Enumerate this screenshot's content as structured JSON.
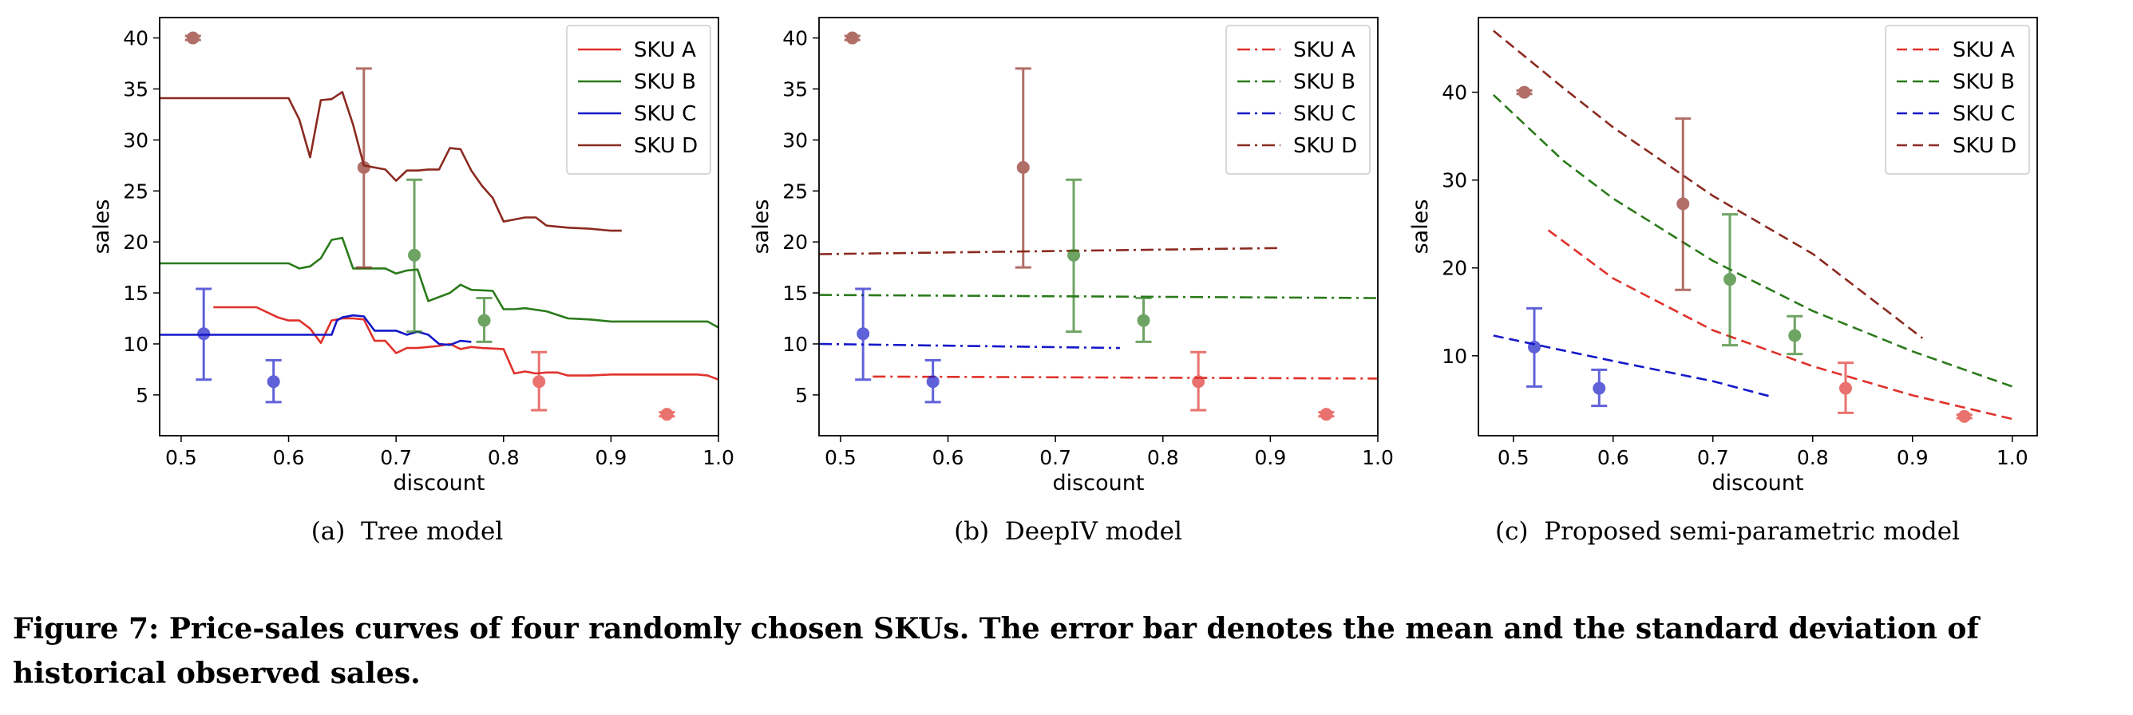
{
  "figure_caption": "Figure 7: Price-sales curves of four randomly chosen SKUs. The error bar denotes the mean and the standard deviation of historical observed sales.",
  "colors": {
    "SKU A": "#e0312b",
    "SKU B": "#2a7a1a",
    "SKU C": "#1518c8",
    "SKU D": "#8b2a20"
  },
  "chart_data": [
    {
      "type": "line",
      "subcaption": "(a)  Tree model",
      "xlabel": "discount",
      "ylabel": "sales",
      "xlim": [
        0.48,
        1.0
      ],
      "ylim": [
        1,
        42
      ],
      "xticks": [
        "0.5",
        "0.6",
        "0.7",
        "0.8",
        "0.9",
        "1.0"
      ],
      "yticks": [
        "5",
        "10",
        "15",
        "20",
        "25",
        "30",
        "35",
        "40"
      ],
      "line_style": "solid",
      "legend_position": "top-right",
      "series": [
        {
          "name": "SKU A",
          "points": [
            [
              0.53,
              13.6
            ],
            [
              0.57,
              13.6
            ],
            [
              0.59,
              12.6
            ],
            [
              0.6,
              12.3
            ],
            [
              0.61,
              12.3
            ],
            [
              0.62,
              11.5
            ],
            [
              0.63,
              10.1
            ],
            [
              0.64,
              12.3
            ],
            [
              0.65,
              12.5
            ],
            [
              0.66,
              12.5
            ],
            [
              0.67,
              12.4
            ],
            [
              0.68,
              10.3
            ],
            [
              0.69,
              10.3
            ],
            [
              0.7,
              9.1
            ],
            [
              0.71,
              9.6
            ],
            [
              0.72,
              9.6
            ],
            [
              0.74,
              9.8
            ],
            [
              0.75,
              10.0
            ],
            [
              0.76,
              9.5
            ],
            [
              0.77,
              9.7
            ],
            [
              0.78,
              9.6
            ],
            [
              0.8,
              9.5
            ],
            [
              0.81,
              7.1
            ],
            [
              0.82,
              7.3
            ],
            [
              0.83,
              7.1
            ],
            [
              0.84,
              7.2
            ],
            [
              0.85,
              7.2
            ],
            [
              0.86,
              6.9
            ],
            [
              0.88,
              6.9
            ],
            [
              0.9,
              7.0
            ],
            [
              0.98,
              7.0
            ],
            [
              0.99,
              6.9
            ],
            [
              1.0,
              6.5
            ]
          ]
        },
        {
          "name": "SKU B",
          "points": [
            [
              0.48,
              17.9
            ],
            [
              0.6,
              17.9
            ],
            [
              0.61,
              17.4
            ],
            [
              0.62,
              17.6
            ],
            [
              0.63,
              18.4
            ],
            [
              0.64,
              20.2
            ],
            [
              0.65,
              20.4
            ],
            [
              0.66,
              17.4
            ],
            [
              0.69,
              17.4
            ],
            [
              0.7,
              16.9
            ],
            [
              0.71,
              17.2
            ],
            [
              0.72,
              17.3
            ],
            [
              0.73,
              14.2
            ],
            [
              0.75,
              15.0
            ],
            [
              0.76,
              15.8
            ],
            [
              0.77,
              15.3
            ],
            [
              0.79,
              15.2
            ],
            [
              0.8,
              13.4
            ],
            [
              0.81,
              13.4
            ],
            [
              0.82,
              13.5
            ],
            [
              0.84,
              13.2
            ],
            [
              0.86,
              12.5
            ],
            [
              0.88,
              12.4
            ],
            [
              0.9,
              12.2
            ],
            [
              0.99,
              12.2
            ],
            [
              1.0,
              11.6
            ]
          ]
        },
        {
          "name": "SKU C",
          "points": [
            [
              0.48,
              10.9
            ],
            [
              0.64,
              10.9
            ],
            [
              0.645,
              12.3
            ],
            [
              0.65,
              12.6
            ],
            [
              0.66,
              12.8
            ],
            [
              0.67,
              12.7
            ],
            [
              0.68,
              11.3
            ],
            [
              0.7,
              11.3
            ],
            [
              0.71,
              10.9
            ],
            [
              0.72,
              11.2
            ],
            [
              0.73,
              10.9
            ],
            [
              0.74,
              10.0
            ],
            [
              0.75,
              9.9
            ],
            [
              0.76,
              10.3
            ],
            [
              0.77,
              10.2
            ]
          ]
        },
        {
          "name": "SKU D",
          "points": [
            [
              0.48,
              34.1
            ],
            [
              0.6,
              34.1
            ],
            [
              0.61,
              32.0
            ],
            [
              0.62,
              28.3
            ],
            [
              0.63,
              33.9
            ],
            [
              0.64,
              34.0
            ],
            [
              0.65,
              34.7
            ],
            [
              0.66,
              31.5
            ],
            [
              0.67,
              27.5
            ],
            [
              0.68,
              27.3
            ],
            [
              0.69,
              27.1
            ],
            [
              0.7,
              26.0
            ],
            [
              0.71,
              27.0
            ],
            [
              0.72,
              27.0
            ],
            [
              0.73,
              27.1
            ],
            [
              0.74,
              27.1
            ],
            [
              0.75,
              29.2
            ],
            [
              0.76,
              29.1
            ],
            [
              0.77,
              27.0
            ],
            [
              0.78,
              25.5
            ],
            [
              0.79,
              24.3
            ],
            [
              0.8,
              22.0
            ],
            [
              0.81,
              22.2
            ],
            [
              0.82,
              22.4
            ],
            [
              0.83,
              22.4
            ],
            [
              0.84,
              21.6
            ],
            [
              0.86,
              21.4
            ],
            [
              0.88,
              21.3
            ],
            [
              0.9,
              21.1
            ],
            [
              0.91,
              21.1
            ]
          ]
        }
      ],
      "errorbars": [
        {
          "sku": "SKU D",
          "x": 0.511,
          "mean": 40.0,
          "low": 39.8,
          "high": 40.2
        },
        {
          "sku": "SKU C",
          "x": 0.521,
          "mean": 11.0,
          "low": 6.5,
          "high": 15.4
        },
        {
          "sku": "SKU C",
          "x": 0.586,
          "mean": 6.3,
          "low": 4.3,
          "high": 8.4
        },
        {
          "sku": "SKU D",
          "x": 0.67,
          "mean": 27.3,
          "low": 17.5,
          "high": 37.0
        },
        {
          "sku": "SKU B",
          "x": 0.717,
          "mean": 18.7,
          "low": 11.2,
          "high": 26.1
        },
        {
          "sku": "SKU B",
          "x": 0.782,
          "mean": 12.3,
          "low": 10.2,
          "high": 14.5
        },
        {
          "sku": "SKU A",
          "x": 0.833,
          "mean": 6.3,
          "low": 3.5,
          "high": 9.2
        },
        {
          "sku": "SKU A",
          "x": 0.952,
          "mean": 3.1,
          "low": 2.9,
          "high": 3.3
        }
      ]
    },
    {
      "type": "line",
      "subcaption": "(b)  DeepIV model",
      "xlabel": "discount",
      "ylabel": "sales",
      "xlim": [
        0.48,
        1.0
      ],
      "ylim": [
        1,
        42
      ],
      "xticks": [
        "0.5",
        "0.6",
        "0.7",
        "0.8",
        "0.9",
        "1.0"
      ],
      "yticks": [
        "5",
        "10",
        "15",
        "20",
        "25",
        "30",
        "35",
        "40"
      ],
      "line_style": "dashdot",
      "legend_position": "top-right",
      "series": [
        {
          "name": "SKU A",
          "points": [
            [
              0.53,
              6.8
            ],
            [
              1.0,
              6.6
            ]
          ]
        },
        {
          "name": "SKU B",
          "points": [
            [
              0.48,
              14.8
            ],
            [
              1.0,
              14.5
            ]
          ]
        },
        {
          "name": "SKU C",
          "points": [
            [
              0.48,
              10.0
            ],
            [
              0.76,
              9.6
            ]
          ]
        },
        {
          "name": "SKU D",
          "points": [
            [
              0.48,
              18.8
            ],
            [
              0.91,
              19.4
            ]
          ]
        }
      ],
      "errorbars": [
        {
          "sku": "SKU D",
          "x": 0.511,
          "mean": 40.0,
          "low": 39.8,
          "high": 40.2
        },
        {
          "sku": "SKU C",
          "x": 0.521,
          "mean": 11.0,
          "low": 6.5,
          "high": 15.4
        },
        {
          "sku": "SKU C",
          "x": 0.586,
          "mean": 6.3,
          "low": 4.3,
          "high": 8.4
        },
        {
          "sku": "SKU D",
          "x": 0.67,
          "mean": 27.3,
          "low": 17.5,
          "high": 37.0
        },
        {
          "sku": "SKU B",
          "x": 0.717,
          "mean": 18.7,
          "low": 11.2,
          "high": 26.1
        },
        {
          "sku": "SKU B",
          "x": 0.782,
          "mean": 12.3,
          "low": 10.2,
          "high": 14.5
        },
        {
          "sku": "SKU A",
          "x": 0.833,
          "mean": 6.3,
          "low": 3.5,
          "high": 9.2
        },
        {
          "sku": "SKU A",
          "x": 0.952,
          "mean": 3.1,
          "low": 2.9,
          "high": 3.3
        }
      ]
    },
    {
      "type": "line",
      "subcaption": "(c)  Proposed semi-parametric model",
      "xlabel": "discount",
      "ylabel": "sales",
      "xlim": [
        0.465,
        1.025
      ],
      "ylim": [
        0.9,
        48.5
      ],
      "xticks": [
        "0.5",
        "0.6",
        "0.7",
        "0.8",
        "0.9",
        "1.0"
      ],
      "yticks": [
        "10",
        "20",
        "30",
        "40"
      ],
      "line_style": "dashed",
      "legend_position": "top-right",
      "series": [
        {
          "name": "SKU A",
          "points": [
            [
              0.535,
              24.3
            ],
            [
              0.6,
              18.8
            ],
            [
              0.7,
              12.9
            ],
            [
              0.8,
              8.8
            ],
            [
              0.9,
              5.5
            ],
            [
              1.0,
              2.8
            ]
          ]
        },
        {
          "name": "SKU B",
          "points": [
            [
              0.48,
              39.7
            ],
            [
              0.55,
              32.2
            ],
            [
              0.6,
              27.9
            ],
            [
              0.7,
              20.8
            ],
            [
              0.8,
              15.1
            ],
            [
              0.9,
              10.5
            ],
            [
              1.0,
              6.5
            ]
          ]
        },
        {
          "name": "SKU C",
          "points": [
            [
              0.48,
              12.3
            ],
            [
              0.55,
              10.6
            ],
            [
              0.6,
              9.4
            ],
            [
              0.7,
              7.1
            ],
            [
              0.76,
              5.3
            ]
          ]
        },
        {
          "name": "SKU D",
          "points": [
            [
              0.48,
              47.0
            ],
            [
              0.55,
              40.5
            ],
            [
              0.6,
              36.0
            ],
            [
              0.7,
              28.2
            ],
            [
              0.8,
              21.6
            ],
            [
              0.91,
              12.0
            ]
          ]
        }
      ],
      "errorbars": [
        {
          "sku": "SKU D",
          "x": 0.511,
          "mean": 40.0,
          "low": 39.8,
          "high": 40.2
        },
        {
          "sku": "SKU C",
          "x": 0.521,
          "mean": 11.0,
          "low": 6.5,
          "high": 15.4
        },
        {
          "sku": "SKU C",
          "x": 0.586,
          "mean": 6.3,
          "low": 4.3,
          "high": 8.4
        },
        {
          "sku": "SKU D",
          "x": 0.67,
          "mean": 27.3,
          "low": 17.5,
          "high": 37.0
        },
        {
          "sku": "SKU B",
          "x": 0.717,
          "mean": 18.7,
          "low": 11.2,
          "high": 26.1
        },
        {
          "sku": "SKU B",
          "x": 0.782,
          "mean": 12.3,
          "low": 10.2,
          "high": 14.5
        },
        {
          "sku": "SKU A",
          "x": 0.833,
          "mean": 6.3,
          "low": 3.5,
          "high": 9.2
        },
        {
          "sku": "SKU A",
          "x": 0.952,
          "mean": 3.1,
          "low": 2.9,
          "high": 3.3
        }
      ]
    }
  ]
}
